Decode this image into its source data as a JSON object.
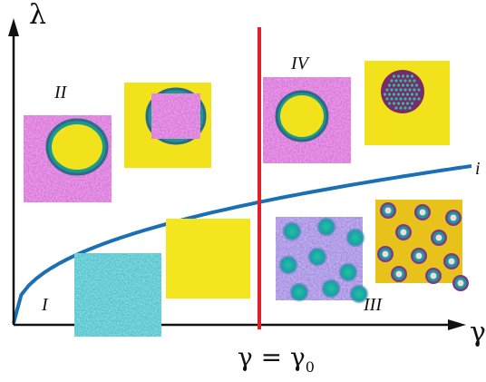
{
  "diagram": {
    "axes": {
      "y_symbol": "λ",
      "x_symbol": "γ"
    },
    "critical_line": {
      "equation_lhs": "γ = γ",
      "equation_subscript": "0",
      "color": "#e0202a"
    },
    "boundary_curve": {
      "label": "i",
      "color": "#1a6fb5"
    },
    "regions": [
      {
        "id": "I",
        "label": "I"
      },
      {
        "id": "II",
        "label": "II"
      },
      {
        "id": "III",
        "label": "III"
      },
      {
        "id": "IV",
        "label": "IV"
      }
    ],
    "colors": {
      "axis": "#111111",
      "yellow": "#f2e21b",
      "purple": "#8a3f9e",
      "teal": "#2aa09a",
      "blue_purple": "#5a4bb0"
    }
  }
}
